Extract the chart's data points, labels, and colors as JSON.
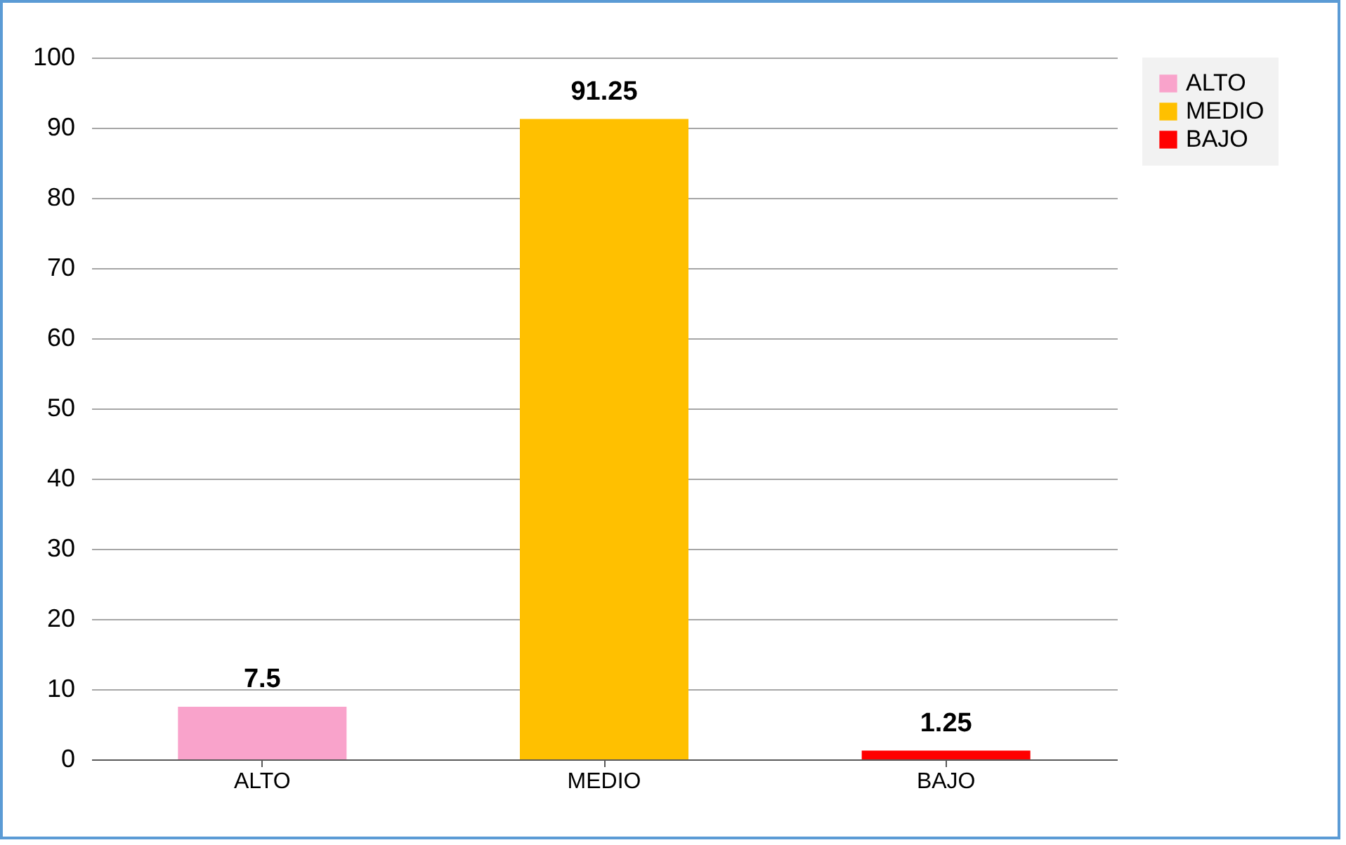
{
  "chart_data": {
    "type": "bar",
    "categories": [
      "ALTO",
      "MEDIO",
      "BAJO"
    ],
    "series": [
      {
        "name": "ALTO",
        "color": "#f9a3cb",
        "values": [
          7.5,
          null,
          null
        ]
      },
      {
        "name": "MEDIO",
        "color": "#ffc000",
        "values": [
          null,
          91.25,
          null
        ]
      },
      {
        "name": "BAJO",
        "color": "#ff0000",
        "values": [
          null,
          null,
          1.25
        ]
      }
    ],
    "ylim": [
      0,
      100
    ],
    "yticks": [
      0,
      10,
      20,
      30,
      40,
      50,
      60,
      70,
      80,
      90,
      100
    ],
    "grid": "y",
    "legend": "right",
    "data_labels": true
  }
}
